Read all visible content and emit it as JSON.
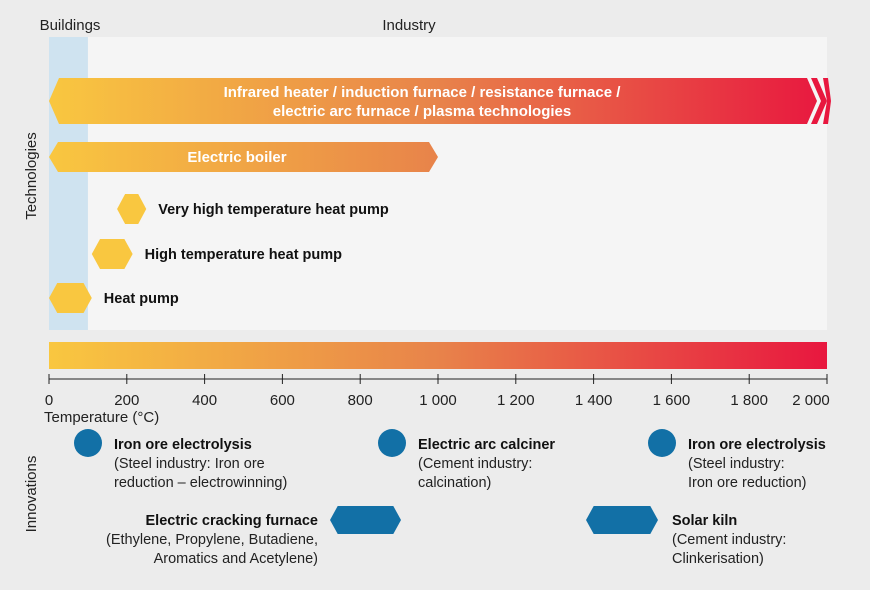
{
  "chart_data": {
    "type": "range-bar",
    "zones": [
      {
        "name": "Buildings",
        "range": [
          0,
          100
        ]
      },
      {
        "name": "Industry",
        "range": [
          100,
          2000
        ]
      }
    ],
    "ylabel_top": "Technologies",
    "ylabel_bottom": "Innovations",
    "xlabel": "Temperature (°C)",
    "xlim": [
      0,
      2000
    ],
    "ticks": [
      0,
      200,
      400,
      600,
      800,
      1000,
      1200,
      1400,
      1600,
      1800,
      2000
    ],
    "tick_labels": [
      "0",
      "200",
      "400",
      "600",
      "800",
      "1 000",
      "1 200",
      "1 400",
      "1 600",
      "1 800",
      "2 000"
    ],
    "technologies": [
      {
        "label_lines": [
          "Infrared heater / induction furnace / resistance furnace /",
          "electric arc furnace / plasma technologies"
        ],
        "range": [
          0,
          2000
        ],
        "open_ended": true
      },
      {
        "label_lines": [
          "Electric boiler"
        ],
        "range": [
          0,
          1000
        ]
      },
      {
        "label_lines": [
          "Very high temperature heat pump"
        ],
        "range": [
          175,
          250
        ]
      },
      {
        "label_lines": [
          "High temperature heat pump"
        ],
        "range": [
          110,
          215
        ]
      },
      {
        "label_lines": [
          "Heat pump"
        ],
        "range": [
          0,
          110
        ]
      }
    ],
    "innovations": [
      {
        "title": "Iron ore electrolysis",
        "desc": [
          "(Steel industry: Iron ore",
          "reduction – electrowinning)"
        ],
        "marker": "circle",
        "value": 100,
        "row": 1,
        "label_side": "right"
      },
      {
        "title": "Electric arc calciner",
        "desc": [
          "(Cement industry:",
          "calcination)"
        ],
        "marker": "circle",
        "value": 900,
        "row": 1,
        "label_side": "right"
      },
      {
        "title": "Iron ore electrolysis",
        "desc": [
          "(Steel industry:",
          "Iron ore reduction)"
        ],
        "marker": "circle",
        "value": 1600,
        "row": 1,
        "label_side": "right"
      },
      {
        "title": "Electric cracking furnace",
        "desc": [
          "(Ethylene, Propylene, Butadiene,",
          "Aromatics and Acetylene)"
        ],
        "marker": "hexagon",
        "range": [
          740,
          920
        ],
        "row": 2,
        "label_side": "left"
      },
      {
        "title": "Solar kiln",
        "desc": [
          "(Cement industry:",
          "Clinkerisation)"
        ],
        "marker": "hexagon",
        "range": [
          1400,
          1570
        ],
        "row": 2,
        "label_side": "right"
      }
    ],
    "colors": {
      "gradient_start": "#f9c740",
      "gradient_mid": "#e8834a",
      "gradient_end": "#e8173f",
      "buildings_zone": "#cfe3f0",
      "industry_zone": "#f5f5f5",
      "innovation_marker": "#1270a6",
      "background": "#ececec"
    }
  }
}
